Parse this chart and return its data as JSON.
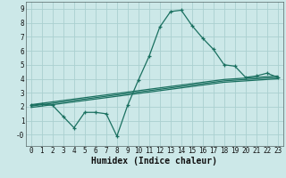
{
  "xlabel": "Humidex (Indice chaleur)",
  "bg_color": "#cce8e8",
  "grid_color": "#aad0d0",
  "line_color": "#1a7060",
  "x_values": [
    0,
    1,
    2,
    3,
    4,
    5,
    6,
    7,
    8,
    9,
    10,
    11,
    12,
    13,
    14,
    15,
    16,
    17,
    18,
    19,
    20,
    21,
    22,
    23
  ],
  "y_main": [
    2.1,
    2.2,
    2.1,
    1.3,
    0.5,
    1.6,
    1.6,
    1.5,
    -0.1,
    2.1,
    3.9,
    5.6,
    7.7,
    8.8,
    8.9,
    7.8,
    6.9,
    6.1,
    5.0,
    4.9,
    4.1,
    4.2,
    4.4,
    4.1
  ],
  "y_line1": [
    2.15,
    2.25,
    2.35,
    2.45,
    2.55,
    2.65,
    2.75,
    2.85,
    2.95,
    3.05,
    3.15,
    3.25,
    3.35,
    3.45,
    3.55,
    3.65,
    3.75,
    3.85,
    3.95,
    4.0,
    4.05,
    4.1,
    4.15,
    4.2
  ],
  "y_line2": [
    2.05,
    2.15,
    2.25,
    2.35,
    2.45,
    2.55,
    2.65,
    2.75,
    2.85,
    2.95,
    3.05,
    3.15,
    3.25,
    3.35,
    3.45,
    3.55,
    3.65,
    3.75,
    3.85,
    3.9,
    3.95,
    4.0,
    4.05,
    4.1
  ],
  "y_line3": [
    1.95,
    2.05,
    2.15,
    2.25,
    2.35,
    2.45,
    2.55,
    2.65,
    2.75,
    2.85,
    2.95,
    3.05,
    3.15,
    3.25,
    3.35,
    3.45,
    3.55,
    3.65,
    3.75,
    3.8,
    3.85,
    3.9,
    3.95,
    4.0
  ],
  "ylim": [
    -0.8,
    9.5
  ],
  "xlim": [
    -0.5,
    23.5
  ],
  "yticks": [
    0,
    1,
    2,
    3,
    4,
    5,
    6,
    7,
    8,
    9
  ],
  "xticks": [
    0,
    1,
    2,
    3,
    4,
    5,
    6,
    7,
    8,
    9,
    10,
    11,
    12,
    13,
    14,
    15,
    16,
    17,
    18,
    19,
    20,
    21,
    22,
    23
  ]
}
